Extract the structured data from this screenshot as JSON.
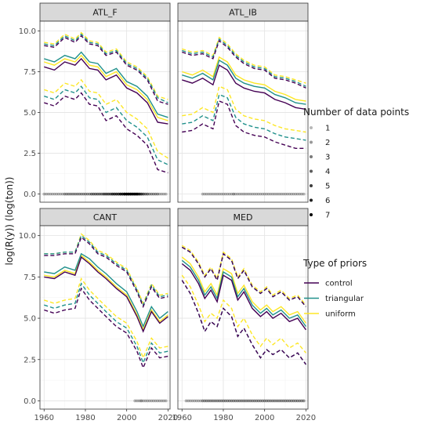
{
  "chart_data": {
    "type": "line",
    "facet_layout": "2x2",
    "grid": true,
    "ylabel": "log(R(y))    (log(ton))",
    "xlabel": "",
    "x_ticks": [
      1960,
      1980,
      2000,
      2020
    ],
    "y_ticks": [
      0.0,
      2.5,
      5.0,
      7.5,
      10.0
    ],
    "y_tick_labels": [
      "0.0",
      "2.5",
      "5.0",
      "7.5",
      "10.0"
    ],
    "xlim": [
      1958,
      2021
    ],
    "ylim": [
      -0.5,
      10.6
    ],
    "colors": {
      "control": "#440154",
      "triangular": "#21918c",
      "uniform": "#fde725"
    },
    "legend_placement": "right",
    "legend_points": {
      "title": "Number of data points",
      "entries": [
        "1",
        "2",
        "3",
        "4",
        "5",
        "6",
        "7"
      ]
    },
    "legend_priors": {
      "title": "Type of priors",
      "entries": [
        "control",
        "triangular",
        "uniform"
      ]
    },
    "panels": [
      {
        "name": "ATL_F",
        "x": [
          1960,
          1965,
          1970,
          1975,
          1978,
          1982,
          1986,
          1990,
          1995,
          2000,
          2005,
          2010,
          2015,
          2020
        ],
        "mid": {
          "control": [
            7.8,
            7.6,
            8.1,
            7.9,
            8.3,
            7.7,
            7.6,
            7.0,
            7.3,
            6.5,
            6.2,
            5.6,
            4.4,
            4.3
          ],
          "triangular": [
            8.3,
            8.1,
            8.5,
            8.3,
            8.7,
            8.1,
            8.0,
            7.4,
            7.7,
            6.9,
            6.6,
            6.0,
            4.9,
            4.7
          ],
          "uniform": [
            8.1,
            7.9,
            8.3,
            8.1,
            8.5,
            7.9,
            7.8,
            7.2,
            7.5,
            6.7,
            6.4,
            5.8,
            4.7,
            4.5
          ]
        },
        "upper": {
          "control": [
            9.1,
            9.0,
            9.6,
            9.3,
            9.7,
            9.2,
            9.1,
            8.5,
            8.7,
            7.9,
            7.6,
            7.0,
            5.7,
            5.5
          ],
          "triangular": [
            9.2,
            9.1,
            9.7,
            9.4,
            9.8,
            9.3,
            9.2,
            8.6,
            8.8,
            8.0,
            7.7,
            7.1,
            5.9,
            5.6
          ],
          "uniform": [
            9.3,
            9.2,
            9.8,
            9.5,
            9.9,
            9.4,
            9.3,
            8.7,
            8.9,
            8.1,
            7.8,
            7.2,
            6.0,
            5.8
          ]
        },
        "lower": {
          "control": [
            5.6,
            5.4,
            6.0,
            5.8,
            6.2,
            5.5,
            5.4,
            4.5,
            4.8,
            4.0,
            3.6,
            3.0,
            1.5,
            1.3
          ],
          "triangular": [
            6.0,
            5.8,
            6.4,
            6.2,
            6.6,
            5.9,
            5.8,
            5.0,
            5.3,
            4.5,
            4.1,
            3.5,
            2.1,
            1.8
          ],
          "uniform": [
            6.4,
            6.2,
            6.8,
            6.6,
            7.0,
            6.3,
            6.2,
            5.5,
            5.8,
            5.0,
            4.6,
            4.0,
            2.6,
            2.2
          ]
        },
        "obs_years": [
          1960,
          1961,
          1962,
          1963,
          1964,
          1965,
          1966,
          1967,
          1968,
          1969,
          1970,
          1971,
          1972,
          1973,
          1974,
          1975,
          1976,
          1977,
          1978,
          1979,
          1980,
          1981,
          1982,
          1983,
          1984,
          1985,
          1986,
          1987,
          1988,
          1989,
          1990,
          1991,
          1992,
          1993,
          1994,
          1995,
          1996,
          1997,
          1998,
          1999,
          2000,
          2001,
          2002,
          2003,
          2004,
          2005,
          2006,
          2007,
          2008,
          2009,
          2010,
          2011,
          2012,
          2013,
          2014,
          2015,
          2016,
          2017,
          2018,
          2019
        ],
        "obs_counts": [
          1,
          1,
          1,
          1,
          1,
          1,
          1,
          1,
          1,
          1,
          2,
          2,
          2,
          2,
          2,
          2,
          2,
          2,
          2,
          2,
          2,
          2,
          2,
          3,
          3,
          3,
          3,
          3,
          3,
          4,
          4,
          4,
          4,
          5,
          5,
          5,
          5,
          6,
          6,
          7,
          7,
          7,
          7,
          7,
          7,
          7,
          6,
          5,
          4,
          3,
          3,
          2,
          2,
          2,
          2,
          2,
          1,
          1,
          1,
          1
        ]
      },
      {
        "name": "ATL_IB",
        "x": [
          1960,
          1965,
          1970,
          1975,
          1978,
          1982,
          1986,
          1990,
          1995,
          2000,
          2005,
          2010,
          2015,
          2020
        ],
        "mid": {
          "control": [
            7.0,
            6.8,
            7.1,
            6.7,
            7.9,
            7.6,
            6.8,
            6.5,
            6.3,
            6.2,
            5.8,
            5.6,
            5.3,
            5.2
          ],
          "triangular": [
            7.3,
            7.1,
            7.4,
            7.0,
            8.2,
            7.9,
            7.1,
            6.8,
            6.6,
            6.5,
            6.1,
            5.9,
            5.6,
            5.5
          ],
          "uniform": [
            7.5,
            7.3,
            7.6,
            7.2,
            8.4,
            8.1,
            7.3,
            7.0,
            6.8,
            6.7,
            6.3,
            6.1,
            5.8,
            5.7
          ]
        },
        "upper": {
          "control": [
            8.7,
            8.5,
            8.6,
            8.3,
            9.4,
            9.0,
            8.4,
            8.0,
            7.7,
            7.6,
            7.1,
            7.0,
            6.8,
            6.5
          ],
          "triangular": [
            8.8,
            8.6,
            8.7,
            8.4,
            9.5,
            9.1,
            8.5,
            8.1,
            7.8,
            7.7,
            7.2,
            7.1,
            6.9,
            6.6
          ],
          "uniform": [
            8.9,
            8.7,
            8.8,
            8.5,
            9.6,
            9.2,
            8.6,
            8.2,
            7.9,
            7.8,
            7.3,
            7.2,
            7.0,
            6.8
          ]
        },
        "lower": {
          "control": [
            3.8,
            3.9,
            4.3,
            4.0,
            5.7,
            5.5,
            4.2,
            3.8,
            3.6,
            3.5,
            3.2,
            3.0,
            2.8,
            2.8
          ],
          "triangular": [
            4.3,
            4.4,
            4.8,
            4.5,
            6.1,
            5.9,
            4.7,
            4.3,
            4.1,
            4.0,
            3.7,
            3.5,
            3.4,
            3.3
          ],
          "uniform": [
            4.8,
            4.9,
            5.3,
            5.0,
            6.6,
            6.4,
            5.2,
            4.8,
            4.6,
            4.5,
            4.2,
            4.0,
            3.9,
            3.8
          ]
        },
        "obs_years": [
          1970,
          1971,
          1972,
          1973,
          1974,
          1975,
          1976,
          1977,
          1978,
          1979,
          1980,
          1981,
          1982,
          1983,
          1984,
          1985,
          1986,
          1987,
          1988,
          1989,
          1990,
          1991,
          1992,
          1993,
          1994,
          1995,
          1996,
          1997,
          1998,
          1999,
          2000,
          2001,
          2002,
          2003,
          2004,
          2005,
          2006,
          2007,
          2008,
          2009,
          2010,
          2011,
          2012,
          2013,
          2014,
          2015,
          2016,
          2017,
          2018,
          2019
        ],
        "obs_counts": [
          1,
          1,
          1,
          1,
          1,
          1,
          1,
          1,
          1,
          1,
          1,
          1,
          1,
          1,
          1,
          2,
          1,
          1,
          1,
          1,
          1,
          1,
          1,
          1,
          1,
          1,
          1,
          1,
          1,
          1,
          1,
          1,
          1,
          1,
          1,
          1,
          1,
          1,
          1,
          1,
          1,
          1,
          1,
          1,
          1,
          1,
          1,
          1,
          1,
          1
        ]
      },
      {
        "name": "CANT",
        "x": [
          1960,
          1965,
          1970,
          1975,
          1978,
          1982,
          1986,
          1990,
          1995,
          2000,
          2005,
          2008,
          2012,
          2016,
          2020
        ],
        "mid": {
          "control": [
            7.5,
            7.4,
            7.8,
            7.6,
            8.7,
            8.3,
            7.8,
            7.4,
            6.8,
            6.3,
            5.1,
            4.2,
            5.4,
            4.7,
            5.1
          ],
          "triangular": [
            7.8,
            7.7,
            8.1,
            7.9,
            8.9,
            8.6,
            8.1,
            7.7,
            7.1,
            6.6,
            5.4,
            4.5,
            5.7,
            5.0,
            5.4
          ],
          "uniform": [
            7.6,
            7.5,
            7.9,
            7.7,
            8.8,
            8.4,
            7.9,
            7.5,
            6.9,
            6.4,
            5.2,
            4.3,
            5.5,
            4.8,
            5.2
          ]
        },
        "upper": {
          "control": [
            8.8,
            8.8,
            8.9,
            8.9,
            9.9,
            9.5,
            8.9,
            8.7,
            8.2,
            7.8,
            6.6,
            5.7,
            6.9,
            6.2,
            6.3
          ],
          "triangular": [
            8.9,
            8.9,
            9.0,
            9.0,
            10.0,
            9.6,
            9.0,
            8.8,
            8.3,
            7.9,
            6.7,
            5.8,
            7.0,
            6.3,
            6.4
          ],
          "uniform": [
            8.9,
            8.9,
            9.0,
            9.0,
            10.1,
            9.7,
            9.1,
            8.9,
            8.4,
            8.0,
            6.8,
            5.9,
            7.1,
            6.4,
            6.5
          ]
        },
        "lower": {
          "control": [
            5.5,
            5.3,
            5.5,
            5.6,
            6.8,
            6.1,
            5.6,
            5.1,
            4.5,
            4.1,
            3.0,
            2.0,
            3.2,
            2.6,
            2.7
          ],
          "triangular": [
            5.8,
            5.6,
            5.8,
            5.9,
            7.1,
            6.4,
            5.9,
            5.4,
            4.8,
            4.4,
            3.3,
            2.3,
            3.5,
            2.9,
            3.0
          ],
          "uniform": [
            6.1,
            5.9,
            6.1,
            6.2,
            7.4,
            6.7,
            6.2,
            5.7,
            5.1,
            4.7,
            3.6,
            2.6,
            3.8,
            3.2,
            3.3
          ]
        },
        "obs_years": [
          2004,
          2005,
          2006,
          2007,
          2008,
          2009,
          2010,
          2011,
          2012,
          2013,
          2014,
          2015,
          2016,
          2017,
          2018,
          2019
        ],
        "obs_counts": [
          1,
          1,
          1,
          2,
          1,
          1,
          1,
          1,
          1,
          1,
          1,
          1,
          1,
          1,
          1,
          1
        ]
      },
      {
        "name": "MED",
        "x": [
          1960,
          1964,
          1968,
          1971,
          1974,
          1977,
          1980,
          1984,
          1987,
          1990,
          1994,
          1998,
          2001,
          2004,
          2008,
          2012,
          2016,
          2020
        ],
        "mid": {
          "control": [
            8.3,
            7.9,
            7.1,
            6.2,
            6.7,
            6.0,
            7.6,
            7.3,
            6.1,
            6.6,
            5.6,
            5.1,
            5.4,
            5.0,
            5.3,
            4.8,
            5.0,
            4.3
          ],
          "triangular": [
            8.5,
            8.1,
            7.3,
            6.4,
            6.9,
            6.2,
            7.8,
            7.5,
            6.3,
            6.8,
            5.8,
            5.3,
            5.6,
            5.2,
            5.5,
            5.0,
            5.2,
            4.5
          ],
          "uniform": [
            8.7,
            8.3,
            7.5,
            6.6,
            7.1,
            6.4,
            8.0,
            7.7,
            6.5,
            7.0,
            6.0,
            5.5,
            5.8,
            5.4,
            5.7,
            5.2,
            5.4,
            4.7
          ]
        },
        "upper": {
          "control": [
            9.3,
            9.0,
            8.3,
            7.5,
            8.0,
            7.3,
            8.9,
            8.5,
            7.4,
            7.9,
            6.9,
            6.5,
            6.8,
            6.3,
            6.6,
            6.1,
            6.3,
            5.7
          ],
          "triangular": [
            9.3,
            9.0,
            8.3,
            7.5,
            8.0,
            7.3,
            8.9,
            8.5,
            7.4,
            7.9,
            6.9,
            6.5,
            6.8,
            6.3,
            6.6,
            6.1,
            6.3,
            5.7
          ],
          "uniform": [
            9.4,
            9.1,
            8.4,
            7.6,
            8.1,
            7.4,
            9.0,
            8.6,
            7.5,
            8.0,
            7.0,
            6.6,
            6.9,
            6.4,
            6.7,
            6.2,
            6.4,
            5.8
          ]
        },
        "lower": {
          "control": [
            7.3,
            6.5,
            5.3,
            4.2,
            4.8,
            4.5,
            5.6,
            5.1,
            3.9,
            4.4,
            3.4,
            2.6,
            3.1,
            2.8,
            3.1,
            2.6,
            2.9,
            2.2
          ],
          "triangular": [
            7.3,
            6.5,
            5.3,
            4.2,
            4.8,
            4.5,
            5.6,
            5.1,
            3.9,
            4.4,
            3.4,
            2.6,
            3.1,
            2.8,
            3.1,
            2.6,
            2.9,
            2.2
          ],
          "uniform": [
            7.6,
            6.9,
            5.8,
            4.8,
            5.3,
            5.0,
            6.1,
            5.6,
            4.5,
            5.0,
            4.0,
            3.3,
            3.8,
            3.4,
            3.8,
            3.2,
            3.5,
            2.9
          ]
        },
        "obs_years": [
          1962,
          1963,
          1964,
          1965,
          1966,
          1967,
          1968,
          1969,
          1970,
          1971,
          1972,
          1973,
          1974,
          1975,
          1976,
          1977,
          1978,
          1979,
          1980,
          1981,
          1982,
          1983,
          1984,
          1985,
          1986,
          1987,
          1988,
          1989,
          1990,
          1991,
          1992,
          1993,
          1994,
          1995,
          1996,
          1997,
          1998,
          1999,
          2000,
          2001,
          2002,
          2003,
          2004,
          2005,
          2006,
          2007,
          2008,
          2009,
          2010,
          2011,
          2012,
          2013,
          2014,
          2015,
          2016,
          2017,
          2018,
          2019
        ],
        "obs_counts": [
          1,
          1,
          1,
          1,
          1,
          1,
          1,
          1,
          2,
          2,
          2,
          2,
          2,
          2,
          2,
          2,
          2,
          2,
          2,
          2,
          2,
          2,
          2,
          2,
          2,
          2,
          2,
          2,
          2,
          2,
          2,
          2,
          2,
          2,
          2,
          2,
          2,
          2,
          2,
          2,
          2,
          2,
          2,
          2,
          2,
          2,
          2,
          2,
          2,
          2,
          2,
          2,
          2,
          2,
          2,
          2,
          2,
          2
        ]
      }
    ]
  }
}
